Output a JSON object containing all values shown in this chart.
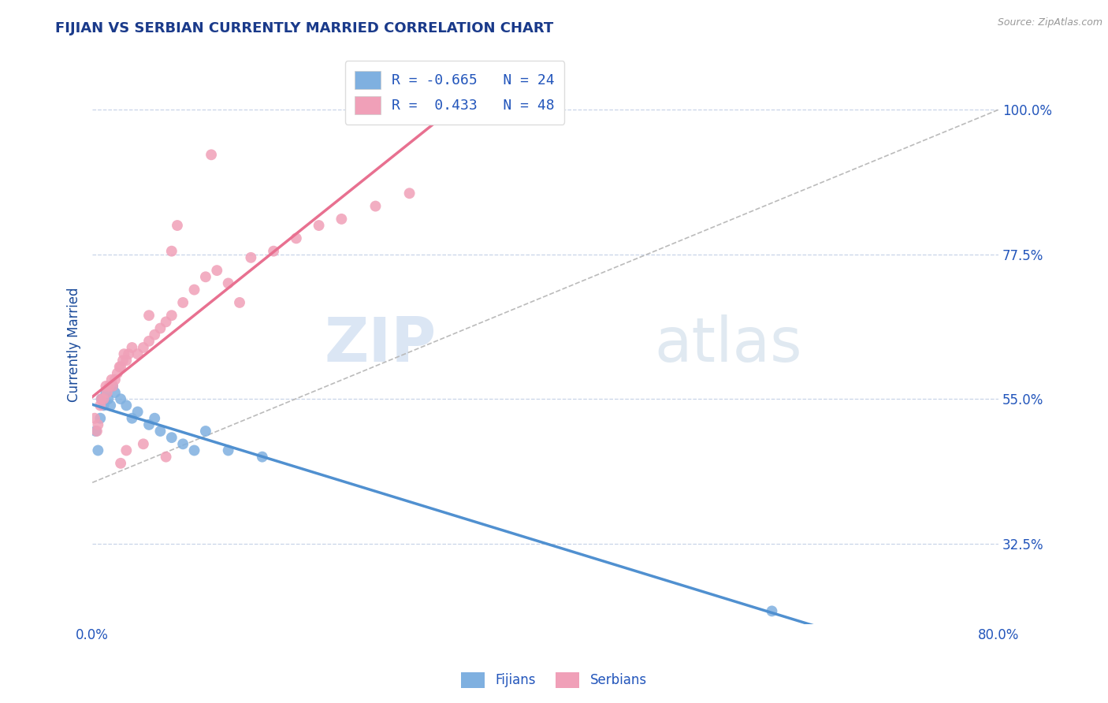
{
  "title": "FIJIAN VS SERBIAN CURRENTLY MARRIED CORRELATION CHART",
  "source_text": "Source: ZipAtlas.com",
  "ylabel": "Currently Married",
  "xlim": [
    0.0,
    80.0
  ],
  "ylim": [
    20.0,
    107.0
  ],
  "yticks": [
    32.5,
    55.0,
    77.5,
    100.0
  ],
  "xticks": [
    0.0,
    80.0
  ],
  "background_color": "#ffffff",
  "grid_color": "#c8d4e8",
  "fijian_color": "#7fb0e0",
  "fijian_line_color": "#5090d0",
  "serbian_color": "#f0a0b8",
  "serbian_line_color": "#e87090",
  "fijian_R": -0.665,
  "fijian_N": 24,
  "serbian_R": 0.433,
  "serbian_N": 48,
  "title_color": "#1a3a8a",
  "axis_label_color": "#1a4a9a",
  "tick_label_color": "#2255bb",
  "watermark_text": "ZIPatlas",
  "fijian_x": [
    0.3,
    0.5,
    0.7,
    0.8,
    1.0,
    1.2,
    1.4,
    1.6,
    1.8,
    2.0,
    2.5,
    3.0,
    3.5,
    4.0,
    5.0,
    5.5,
    6.0,
    7.0,
    8.0,
    9.0,
    10.0,
    12.0,
    15.0,
    60.0
  ],
  "fijian_y": [
    50.0,
    47.0,
    52.0,
    55.0,
    54.0,
    56.0,
    55.0,
    54.0,
    57.0,
    56.0,
    55.0,
    54.0,
    52.0,
    53.0,
    51.0,
    52.0,
    50.0,
    49.0,
    48.0,
    47.0,
    50.0,
    47.0,
    46.0,
    22.0
  ],
  "serbian_x": [
    0.2,
    0.4,
    0.5,
    0.7,
    0.8,
    1.0,
    1.2,
    1.3,
    1.5,
    1.7,
    1.8,
    2.0,
    2.2,
    2.4,
    2.5,
    2.7,
    2.8,
    3.0,
    3.2,
    3.5,
    4.0,
    4.5,
    5.0,
    5.5,
    6.0,
    6.5,
    7.0,
    8.0,
    9.0,
    10.0,
    11.0,
    12.0,
    14.0,
    16.0,
    18.0,
    20.0,
    22.0,
    25.0,
    28.0,
    7.0,
    5.0,
    3.0,
    4.5,
    6.5,
    2.5,
    10.5,
    7.5,
    13.0
  ],
  "serbian_y": [
    52.0,
    50.0,
    51.0,
    54.0,
    55.0,
    55.0,
    57.0,
    56.0,
    57.0,
    58.0,
    57.0,
    58.0,
    59.0,
    60.0,
    60.0,
    61.0,
    62.0,
    61.0,
    62.0,
    63.0,
    62.0,
    63.0,
    64.0,
    65.0,
    66.0,
    67.0,
    68.0,
    70.0,
    72.0,
    74.0,
    75.0,
    73.0,
    77.0,
    78.0,
    80.0,
    82.0,
    83.0,
    85.0,
    87.0,
    78.0,
    68.0,
    47.0,
    48.0,
    46.0,
    45.0,
    93.0,
    82.0,
    70.0
  ],
  "dash_x0": 0.0,
  "dash_y0": 42.0,
  "dash_x1": 80.0,
  "dash_y1": 100.0
}
